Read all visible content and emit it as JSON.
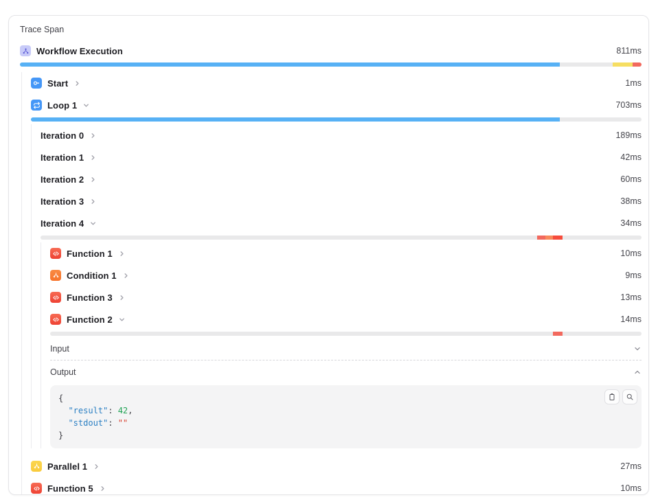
{
  "panel": {
    "title": "Trace Span"
  },
  "spans": {
    "root": {
      "label": "Workflow Execution",
      "duration": "811ms",
      "icon": "workflow-icon"
    },
    "start": {
      "label": "Start",
      "duration": "1ms",
      "icon": "start-node-icon"
    },
    "loop": {
      "label": "Loop 1",
      "duration": "703ms",
      "icon": "loop-icon"
    },
    "iterations": [
      {
        "label": "Iteration 0",
        "duration": "189ms"
      },
      {
        "label": "Iteration 1",
        "duration": "42ms"
      },
      {
        "label": "Iteration 2",
        "duration": "60ms"
      },
      {
        "label": "Iteration 3",
        "duration": "38ms"
      },
      {
        "label": "Iteration 4",
        "duration": "34ms"
      }
    ],
    "functions": [
      {
        "label": "Function 1",
        "duration": "10ms",
        "icon": "code-icon"
      },
      {
        "label": "Condition 1",
        "duration": "9ms",
        "icon": "branch-icon"
      },
      {
        "label": "Function 3",
        "duration": "13ms",
        "icon": "code-icon"
      },
      {
        "label": "Function 2",
        "duration": "14ms",
        "icon": "code-icon"
      }
    ],
    "parallel": {
      "label": "Parallel 1",
      "duration": "27ms",
      "icon": "branch-icon"
    },
    "function5": {
      "label": "Function 5",
      "duration": "10ms",
      "icon": "code-icon"
    }
  },
  "detail": {
    "input_label": "Input",
    "output_label": "Output"
  },
  "code": {
    "brace_open": "{",
    "indent": "  ",
    "result_key": "\"result\"",
    "kv_sep": ": ",
    "result_value": "42",
    "comma": ",",
    "stdout_key": "\"stdout\"",
    "stdout_value": "\"\"",
    "brace_close": "}"
  },
  "bars": {
    "root": [
      {
        "color": "#57b1f5",
        "start": 0,
        "width": 86.8
      },
      {
        "color": "#f6de62",
        "start": 95.4,
        "width": 3.2
      },
      {
        "color": "#f2695e",
        "start": 98.6,
        "width": 1.4
      }
    ],
    "loop": [
      {
        "color": "#57b1f5",
        "start": 0,
        "width": 86.6
      }
    ],
    "iteration4": [
      {
        "color": "#f2695e",
        "start": 82.6,
        "width": 1.4
      },
      {
        "color": "#f8895b",
        "start": 84.0,
        "width": 1.25
      },
      {
        "color": "#f64c3c",
        "start": 85.25,
        "width": 1.6
      }
    ],
    "function2": [
      {
        "color": "#f2695e",
        "start": 85.05,
        "width": 1.62
      }
    ]
  },
  "colors": {
    "bar_track": "#e9e9ea",
    "bar_blue": "#57b1f5",
    "bar_yellow": "#f6de62",
    "bar_salmon": "#f2695e",
    "bar_orange": "#f8895b",
    "bar_red": "#f64c3c",
    "icon_workflow_bg": "#c7caf8",
    "icon_blue_bg": "#4597f7",
    "icon_red_bg": "#ee4133",
    "icon_orange_bg": "#f7742c",
    "icon_yellow_bg": "#f9cb3c",
    "code_key": "#2a7fc3",
    "code_number": "#1fa254",
    "code_string": "#d8402e"
  },
  "icons": {
    "tools": [
      "clipboard-icon",
      "magnifier-icon"
    ],
    "chevrons": [
      "chevron-right-icon",
      "chevron-down-icon",
      "chevron-up-icon"
    ]
  }
}
